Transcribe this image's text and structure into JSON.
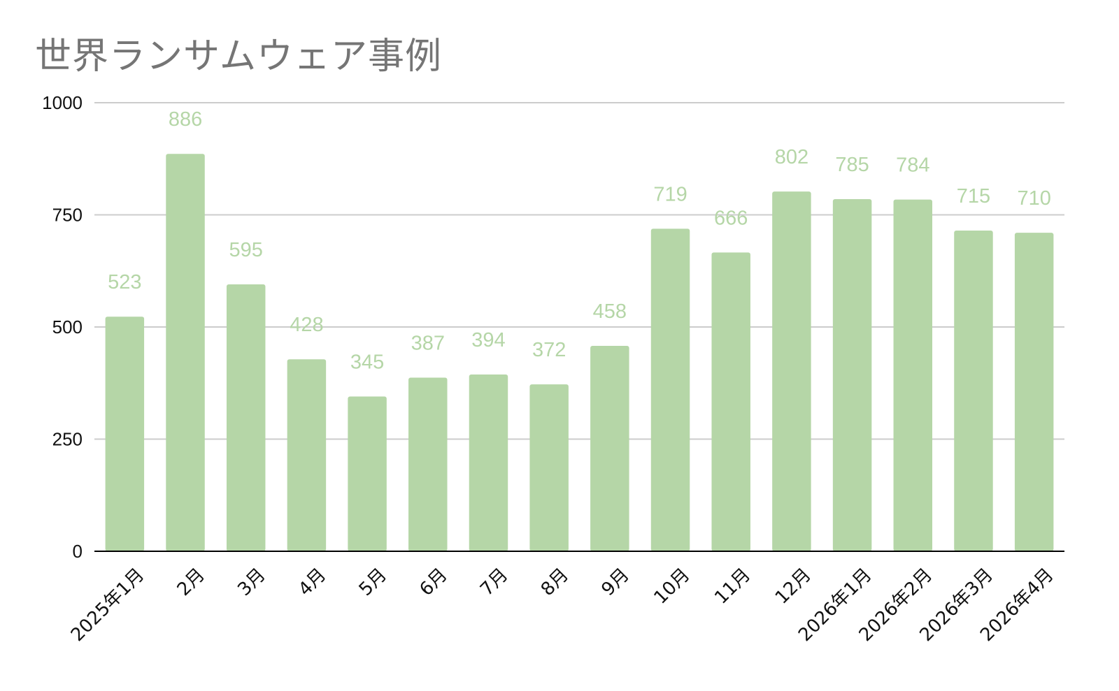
{
  "chart_data": {
    "type": "bar",
    "title": "世界ランサムウェア事例",
    "xlabel": "",
    "ylabel": "",
    "categories": [
      "2025年1月",
      "2月",
      "3月",
      "4月",
      "5月",
      "6月",
      "7月",
      "8月",
      "9月",
      "10月",
      "11月",
      "12月",
      "2026年1月",
      "2026年2月",
      "2026年3月",
      "2026年4月"
    ],
    "values": [
      523,
      886,
      595,
      428,
      345,
      387,
      394,
      372,
      458,
      719,
      666,
      802,
      785,
      784,
      715,
      710
    ],
    "ylim": [
      0,
      1000
    ],
    "yticks": [
      0,
      250,
      500,
      750,
      1000
    ],
    "grid": true,
    "legend": "none",
    "data_labels": true,
    "colors": {
      "bar": "#b5d6a7",
      "data_label": "#b5d6a7",
      "grid": "#cccccc",
      "axis": "#000000",
      "title": "#757575",
      "tick": "#111111"
    }
  }
}
